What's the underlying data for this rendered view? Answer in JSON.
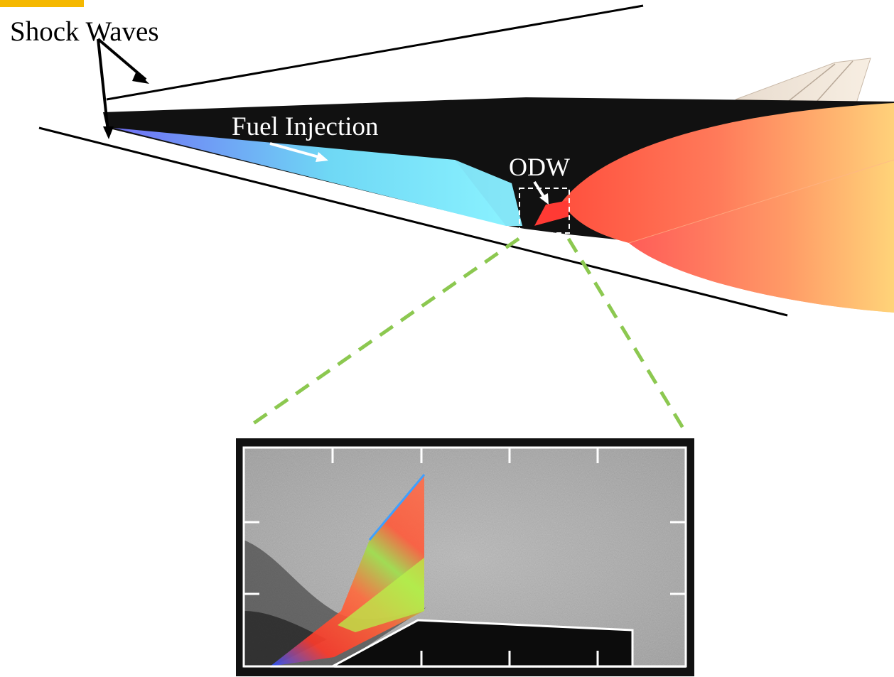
{
  "labels": {
    "shock_waves": "Shock Waves",
    "fuel_injection": "Fuel Injection",
    "odw": "ODW"
  },
  "colors": {
    "accent_tab": "#f5b800",
    "vehicle": "#111111",
    "fuel_start": "#6f6bf5",
    "fuel_end": "#86f0ff",
    "detonation_start": "#ff4d3d",
    "detonation_end": "#ffd27a",
    "zoom_lines": "#8cc850",
    "inset_frame": "#ffffff",
    "inset_border": "#111111"
  }
}
